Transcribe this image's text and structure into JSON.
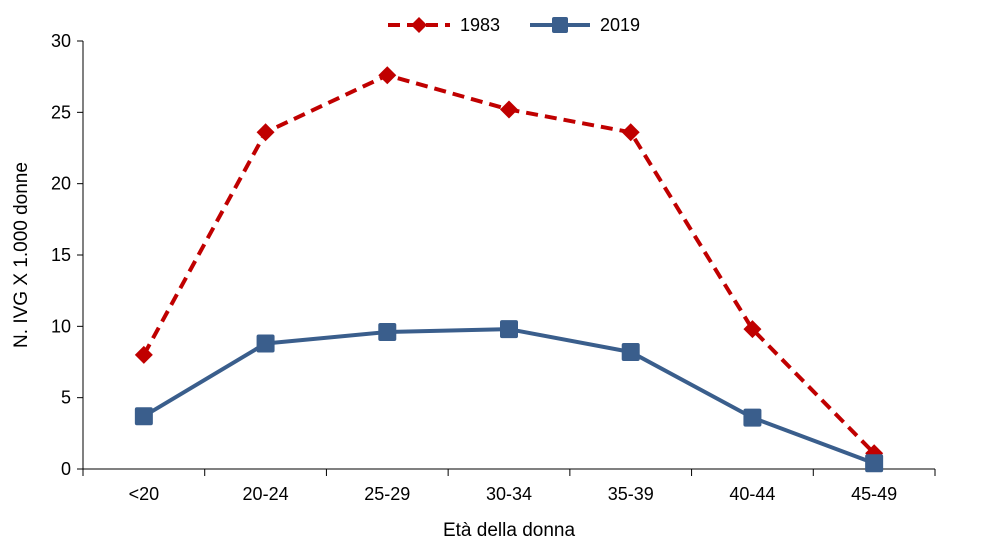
{
  "chart_data": {
    "type": "line",
    "title": "",
    "xlabel": "Età della donna",
    "ylabel": "N. IVG X 1.000 donne",
    "categories": [
      "<20",
      "20-24",
      "25-29",
      "30-34",
      "35-39",
      "40-44",
      "45-49"
    ],
    "ylim": [
      0,
      30
    ],
    "yticks": [
      "0",
      "5",
      "10",
      "15",
      "20",
      "25",
      "30"
    ],
    "grid": false,
    "legend_position": "top-center",
    "series": [
      {
        "name": "1983",
        "values": [
          8.0,
          23.6,
          27.6,
          25.2,
          23.6,
          9.8,
          1.1
        ],
        "color": "#C00000",
        "line_style": "dashed",
        "marker": "diamond"
      },
      {
        "name": "2019",
        "values": [
          3.7,
          8.8,
          9.6,
          9.8,
          8.2,
          3.6,
          0.4
        ],
        "color": "#3A5E8C",
        "line_style": "solid",
        "marker": "square"
      }
    ]
  }
}
